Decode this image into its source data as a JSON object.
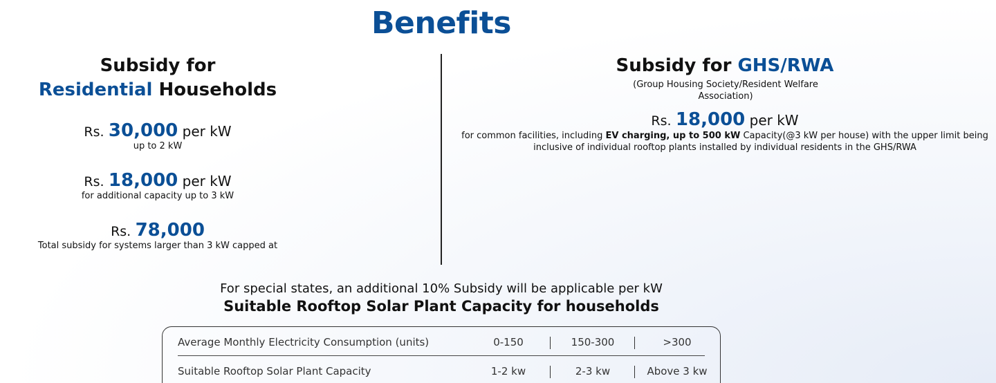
{
  "title": "Benefits",
  "left": {
    "heading_line1": "Subsidy for",
    "heading_blue": "Residential",
    "heading_rest": " Households",
    "items": [
      {
        "rs": "Rs.",
        "amount": "30,000",
        "unit": " per kW",
        "note": "up to 2 kW"
      },
      {
        "rs": "Rs.",
        "amount": "18,000",
        "unit": " per kW",
        "note": "for additional capacity up to 3 kW"
      },
      {
        "rs": "Rs.",
        "amount": "78,000",
        "unit": "",
        "note": "Total subsidy for systems larger than 3 kW capped at"
      }
    ]
  },
  "right": {
    "heading_black": "Subsidy for ",
    "heading_blue": "GHS/RWA",
    "paren": "(Group Housing Society/Resident Welfare Association)",
    "rs": "Rs.",
    "amount": "18,000",
    "unit": " per kW",
    "desc_pre": "for common facilities, including ",
    "desc_bold": "EV charging, up to 500 kW",
    "desc_post": " Capacity(@3 kW per house) with the upper limit being inclusive of individual rooftop plants installed by individual residents in the GHS/RWA"
  },
  "special_note": "For special states, an additional 10% Subsidy will be applicable per kW",
  "suitable_title": "Suitable Rooftop Solar Plant Capacity for households",
  "table": {
    "rows": [
      [
        "Average Monthly Electricity Consumption (units)",
        "0-150",
        "150-300",
        ">300"
      ],
      [
        "Suitable Rooftop Solar Plant Capacity",
        "1-2 kw",
        "2-3 kw",
        "Above 3 kw"
      ]
    ]
  },
  "colors": {
    "accent": "#0b4f96",
    "text": "#111111"
  }
}
